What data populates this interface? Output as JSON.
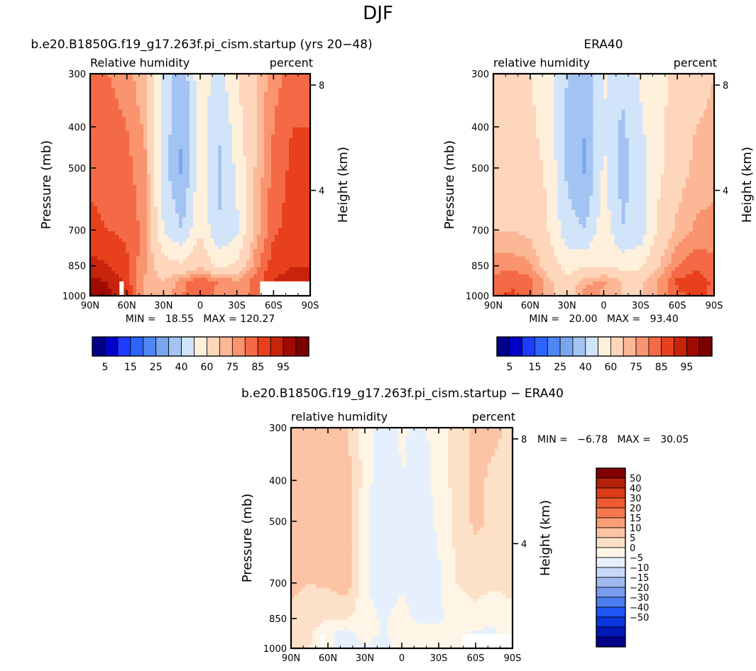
{
  "figure": {
    "title": "DJF"
  },
  "colors": {
    "rh_levels": [
      "#00008b",
      "#0000c8",
      "#1e3cff",
      "#2d64ff",
      "#4f86f4",
      "#7aa6f0",
      "#a3c4f2",
      "#d2e4fa",
      "#fff0dc",
      "#fed6bc",
      "#fcb896",
      "#f9946e",
      "#f46a46",
      "#e8401c",
      "#c8240c",
      "#a00a00",
      "#7a0000"
    ],
    "diff_levels": [
      "#00008b",
      "#0018b4",
      "#0a35dc",
      "#1e55f5",
      "#4c7ef0",
      "#789cee",
      "#9fb9f0",
      "#c6d8f6",
      "#e6f0fc",
      "#fff5e6",
      "#fde0c8",
      "#fcc4a4",
      "#fa9e78",
      "#f77850",
      "#f05a30",
      "#dc3c18",
      "#b4200a",
      "#820000"
    ]
  },
  "panels": [
    {
      "title": "b.e20.B1850G.f19_g17.263f.pi_cism.startup (yrs 20−48)",
      "left_label": "Relative humidity",
      "right_label": "percent",
      "ylabel": "Pressure (mb)",
      "y2label": "Height (km)",
      "min_text": "MIN =   18.55   MAX = 120.27",
      "colorbar_labels": [
        "5",
        "15",
        "25",
        "40",
        "60",
        "75",
        "85",
        "95"
      ]
    },
    {
      "title": "ERA40",
      "left_label": "relative humidity",
      "right_label": "percent",
      "ylabel": "Pressure (mb)",
      "y2label": "Height (km)",
      "min_text": "MIN =   20.00   MAX =   93.40",
      "colorbar_labels": [
        "5",
        "15",
        "25",
        "40",
        "60",
        "75",
        "85",
        "95"
      ]
    },
    {
      "title": "b.e20.B1850G.f19_g17.263f.pi_cism.startup − ERA40",
      "left_label": "relative humidity",
      "right_label": "percent",
      "ylabel": "Pressure (mb)",
      "y2label": "Height (km)",
      "min_text": "MIN =   −6.78   MAX =   30.05",
      "colorbar_labels": [
        "50",
        "40",
        "30",
        "20",
        "15",
        "10",
        "5",
        "0",
        "−5",
        "−10",
        "−15",
        "−20",
        "−30",
        "−40",
        "−50"
      ]
    }
  ],
  "chart_data": [
    {
      "type": "heatmap",
      "title": "b.e20.B1850G.f19_g17.263f.pi_cism.startup (yrs 20−48)",
      "xlabel": "Latitude",
      "ylabel": "Pressure (mb)",
      "y2label": "Height (km)",
      "x_ticks": [
        "90N",
        "60N",
        "30N",
        "0",
        "30S",
        "60S",
        "90S"
      ],
      "y_ticks": [
        300,
        400,
        500,
        700,
        850,
        1000
      ],
      "y2_ticks": [
        8,
        4
      ],
      "levels": [
        5,
        10,
        15,
        20,
        25,
        30,
        40,
        50,
        60,
        70,
        75,
        80,
        85,
        90,
        95,
        100
      ],
      "min": 18.55,
      "max": 120.27,
      "latitudes": [
        90,
        75,
        60,
        45,
        30,
        15,
        0,
        -15,
        -30,
        -45,
        -60,
        -75,
        -90
      ],
      "pressures": [
        300,
        400,
        500,
        700,
        850,
        925,
        1000
      ],
      "values": [
        [
          82,
          80,
          78,
          70,
          48,
          32,
          58,
          45,
          60,
          70,
          78,
          82,
          84
        ],
        [
          83,
          82,
          80,
          74,
          46,
          30,
          55,
          40,
          55,
          70,
          80,
          85,
          85
        ],
        [
          84,
          83,
          82,
          76,
          44,
          28,
          55,
          38,
          52,
          70,
          82,
          86,
          86
        ],
        [
          86,
          85,
          84,
          78,
          50,
          40,
          60,
          40,
          48,
          72,
          84,
          87,
          88
        ],
        [
          92,
          90,
          86,
          76,
          64,
          62,
          68,
          58,
          62,
          78,
          88,
          90,
          90
        ],
        [
          96,
          95,
          88,
          74,
          70,
          78,
          84,
          80,
          76,
          82,
          90,
          92,
          92
        ],
        [
          98,
          96,
          90,
          72,
          70,
          80,
          82,
          78,
          76,
          82,
          88,
          90,
          90
        ]
      ]
    },
    {
      "type": "heatmap",
      "title": "ERA40",
      "xlabel": "Latitude",
      "ylabel": "Pressure (mb)",
      "y2label": "Height (km)",
      "x_ticks": [
        "90N",
        "60N",
        "30N",
        "0",
        "30S",
        "60S",
        "90S"
      ],
      "y_ticks": [
        300,
        400,
        500,
        700,
        850,
        1000
      ],
      "y2_ticks": [
        8,
        4
      ],
      "levels": [
        5,
        10,
        15,
        20,
        25,
        30,
        40,
        50,
        60,
        70,
        75,
        80,
        85,
        90,
        95,
        100
      ],
      "min": 20.0,
      "max": 93.4,
      "latitudes": [
        90,
        75,
        60,
        45,
        30,
        15,
        0,
        -15,
        -30,
        -45,
        -60,
        -75,
        -90
      ],
      "pressures": [
        300,
        400,
        500,
        700,
        850,
        925,
        1000
      ],
      "values": [
        [
          62,
          62,
          60,
          55,
          40,
          32,
          52,
          42,
          52,
          58,
          62,
          66,
          70
        ],
        [
          64,
          64,
          62,
          56,
          38,
          30,
          50,
          38,
          48,
          58,
          64,
          70,
          72
        ],
        [
          66,
          66,
          64,
          58,
          38,
          28,
          52,
          36,
          46,
          58,
          66,
          72,
          74
        ],
        [
          70,
          70,
          68,
          60,
          44,
          40,
          56,
          40,
          44,
          62,
          72,
          76,
          76
        ],
        [
          78,
          78,
          76,
          66,
          56,
          58,
          60,
          56,
          58,
          70,
          80,
          84,
          82
        ],
        [
          82,
          84,
          82,
          72,
          62,
          74,
          76,
          70,
          68,
          76,
          86,
          88,
          84
        ],
        [
          84,
          86,
          82,
          72,
          66,
          78,
          74,
          70,
          70,
          76,
          84,
          86,
          84
        ]
      ]
    },
    {
      "type": "heatmap",
      "title": "b.e20.B1850G.f19_g17.263f.pi_cism.startup − ERA40",
      "xlabel": "Latitude",
      "ylabel": "Pressure (mb)",
      "y2label": "Height (km)",
      "x_ticks": [
        "90N",
        "60N",
        "30N",
        "0",
        "30S",
        "60S",
        "90S"
      ],
      "y_ticks": [
        300,
        400,
        500,
        700,
        850,
        1000
      ],
      "y2_ticks": [
        8,
        4
      ],
      "levels": [
        -50,
        -40,
        -30,
        -20,
        -15,
        -10,
        -5,
        0,
        5,
        10,
        15,
        20,
        30,
        40,
        50
      ],
      "min": -6.78,
      "max": 30.05,
      "latitudes": [
        90,
        75,
        60,
        45,
        30,
        15,
        0,
        -15,
        -30,
        -45,
        -60,
        -75,
        -90
      ],
      "pressures": [
        300,
        400,
        500,
        700,
        850,
        925,
        1000
      ],
      "values": [
        [
          20,
          18,
          18,
          15,
          8,
          0,
          6,
          3,
          8,
          12,
          16,
          16,
          14
        ],
        [
          19,
          18,
          18,
          18,
          8,
          0,
          5,
          2,
          7,
          12,
          16,
          14,
          13
        ],
        [
          18,
          17,
          18,
          18,
          6,
          0,
          3,
          2,
          6,
          12,
          16,
          14,
          12
        ],
        [
          16,
          15,
          16,
          18,
          6,
          0,
          4,
          0,
          4,
          10,
          12,
          11,
          12
        ],
        [
          14,
          12,
          10,
          10,
          8,
          4,
          8,
          2,
          4,
          8,
          8,
          6,
          8
        ],
        [
          14,
          11,
          6,
          2,
          8,
          4,
          8,
          10,
          8,
          6,
          4,
          4,
          8
        ],
        [
          14,
          10,
          8,
          0,
          4,
          2,
          8,
          8,
          6,
          6,
          4,
          4,
          6
        ]
      ]
    }
  ]
}
